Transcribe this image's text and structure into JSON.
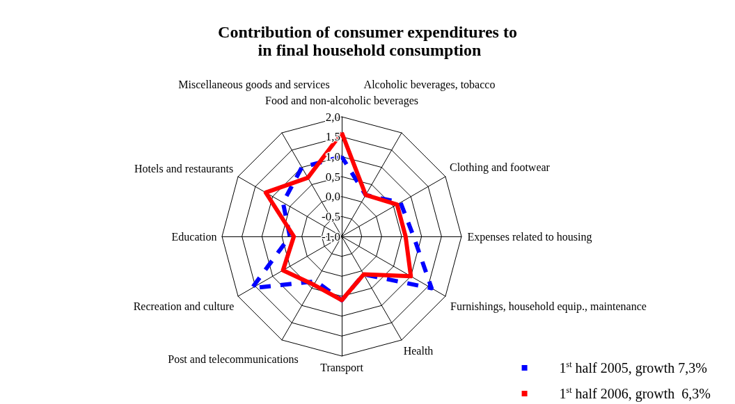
{
  "chart_data": {
    "type": "radar",
    "title": "Contribution of consumer expenditures to\n in final household consumption",
    "categories": [
      "Food and non-alcoholic beverages",
      "Alcoholic beverages, tobacco",
      "Clothing and footwear",
      "Expenses related to housing",
      "Furnishings, household equip., maintenance",
      "Health",
      "Transport",
      "Post and telecommunications",
      "Recreation and culture",
      "Education",
      "Hotels and restaurants",
      "Miscellaneous goods and services"
    ],
    "series": [
      {
        "name": "1$^{st}$ half 2005, growth 7,3%",
        "color": "#0000ff",
        "line_style": "dashed",
        "values": [
          1.0,
          0.2,
          0.7,
          0.8,
          1.6,
          0.1,
          0.6,
          0.3,
          1.6,
          0.3,
          0.7,
          1.0
        ]
      },
      {
        "name": "1$^{st}$ half 2006, growth  6,3%",
        "color": "#ff0000",
        "line_style": "solid",
        "values": [
          1.6,
          0.2,
          0.6,
          0.6,
          1.0,
          0.1,
          0.6,
          0.4,
          0.7,
          0.2,
          1.2,
          0.7
        ]
      }
    ],
    "ylim": [
      -1.0,
      2.0
    ],
    "yticks": [
      {
        "value": -1.0,
        "label": "-1,0"
      },
      {
        "value": -0.5,
        "label": "-0,5"
      },
      {
        "value": 0,
        "label": "0,0"
      },
      {
        "value": 0.5,
        "label": "0,5"
      },
      {
        "value": 1.0,
        "label": "1,0"
      },
      {
        "value": 1.5,
        "label": "1,5"
      },
      {
        "value": 2.0,
        "label": "2,0"
      }
    ],
    "legend": "bottom right",
    "marker": "none"
  }
}
